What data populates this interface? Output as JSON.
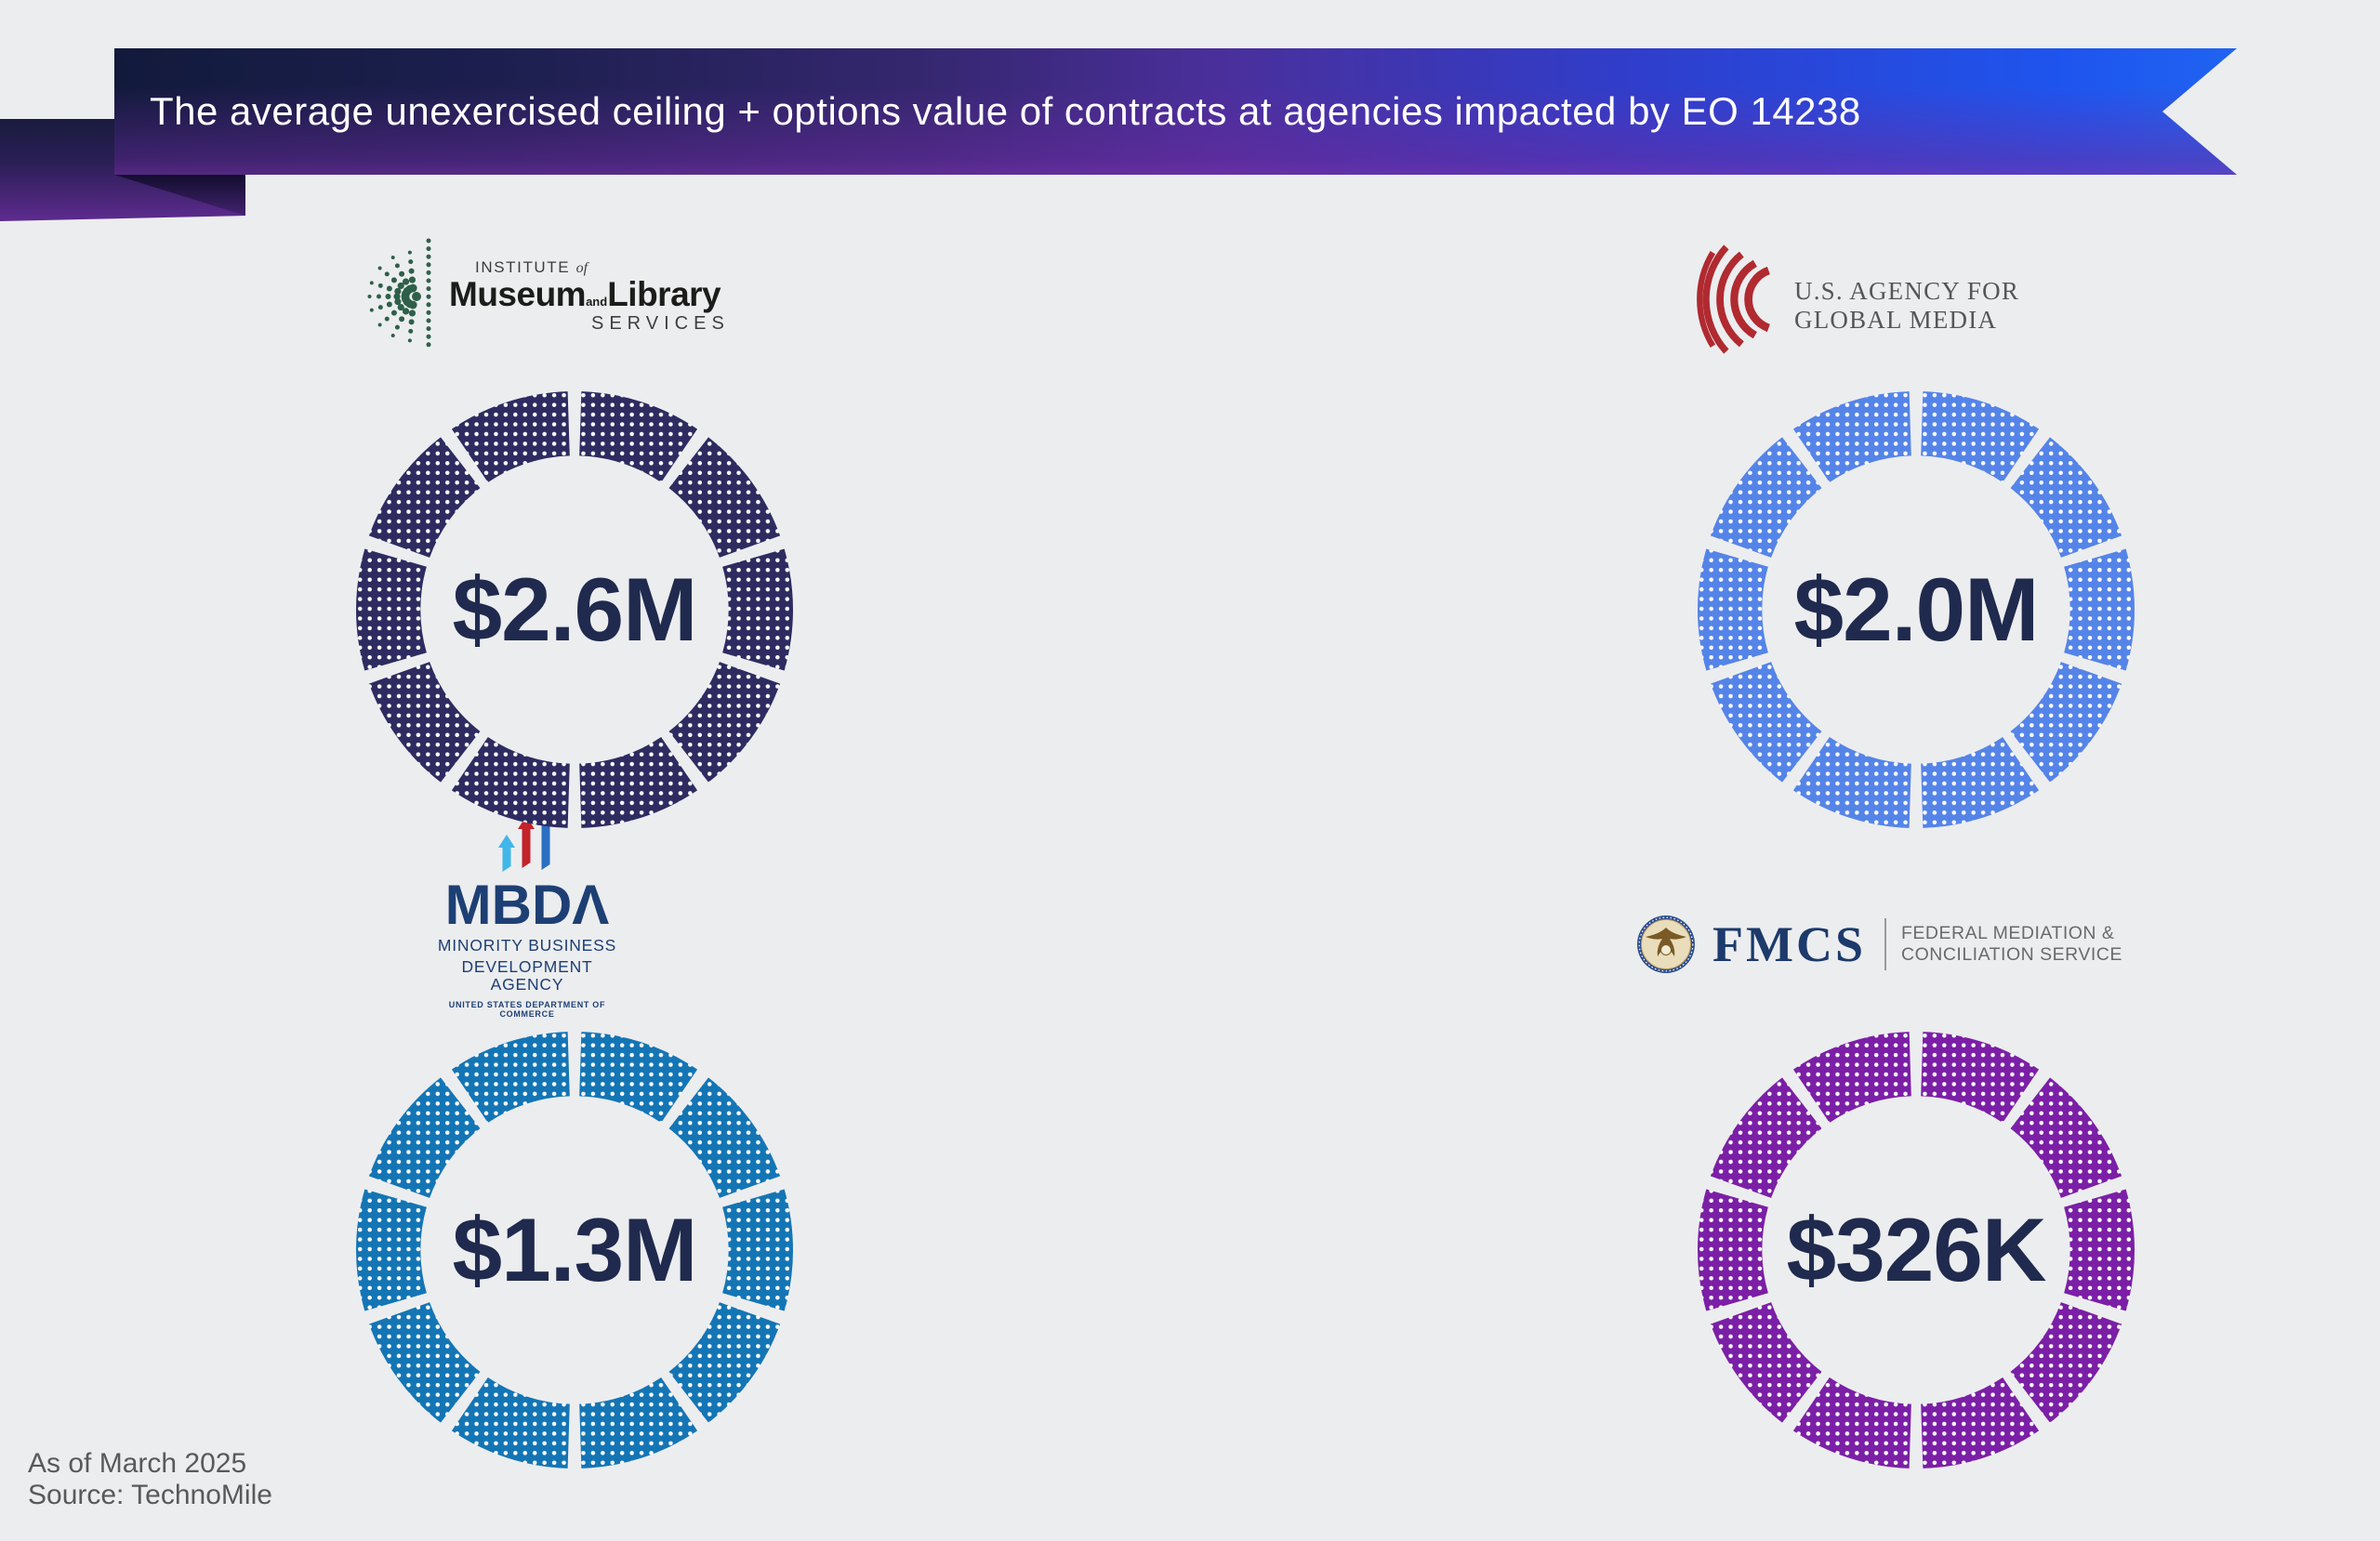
{
  "title": {
    "text": "The average unexercised ceiling + options value of contracts at agencies impacted by EO 14238"
  },
  "footer": {
    "as_of": "As of March 2025",
    "source": "Source: TechnoMile"
  },
  "colors": {
    "background": "#ECEDEF",
    "value_text": "#1F2A4E",
    "banner_text": "#FFFFFF",
    "banner_navy": "#121A3C",
    "banner_purple": "#4A2F9B",
    "banner_blue": "#1E55EE"
  },
  "chart_data": [
    {
      "type": "donut",
      "agency": "Institute of Museum and Library Services",
      "value_label": "$2.6M",
      "value_usd": 2600000,
      "segments": 10,
      "ring_color": "#2D2B60",
      "dot_color": "#FFFFFF"
    },
    {
      "type": "donut",
      "agency": "U.S. Agency for Global Media",
      "value_label": "$2.0M",
      "value_usd": 2000000,
      "segments": 10,
      "ring_color": "#5584E8",
      "dot_color": "#FFFFFF"
    },
    {
      "type": "donut",
      "agency": "Minority Business Development Agency",
      "value_label": "$1.3M",
      "value_usd": 1300000,
      "segments": 10,
      "ring_color": "#1475B5",
      "dot_color": "#FFFFFF"
    },
    {
      "type": "donut",
      "agency": "Federal Mediation & Conciliation Service",
      "value_label": "$326K",
      "value_usd": 326000,
      "segments": 10,
      "ring_color": "#7B1FA6",
      "dot_color": "#FFFFFF"
    }
  ],
  "logos": {
    "imls": {
      "institute": "INSTITUTE",
      "of": "of",
      "museum": "Museum",
      "and": "and",
      "library": "Library",
      "services": "SERVICES",
      "burst_color": "#2E6049"
    },
    "usagm": {
      "line1": "U.S. AGENCY FOR",
      "line2": "GLOBAL MEDIA",
      "arc_color": "#B02A30",
      "text_color": "#54565A"
    },
    "mbda": {
      "acronym": "MBDA",
      "acronym_display": "MBDΛ",
      "line1": "MINORITY BUSINESS",
      "line2": "DEVELOPMENT AGENCY",
      "line3": "UNITED STATES DEPARTMENT OF COMMERCE",
      "navy": "#1D3F74",
      "arrow_lightblue": "#41B6E8",
      "arrow_red": "#C4232B",
      "arrow_blue": "#2B6FC2"
    },
    "fmcs": {
      "acronym": "FMCS",
      "line1": "FEDERAL MEDIATION &",
      "line2": "CONCILIATION SERVICE",
      "navy": "#1C3A6B",
      "gray": "#6A6A6A"
    }
  }
}
